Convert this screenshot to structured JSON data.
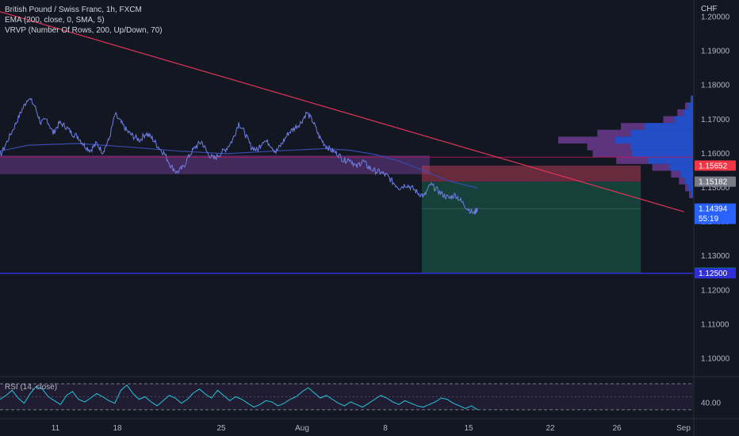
{
  "legend": {
    "title": "British Pound / Swiss Franc, 1h, FXCM",
    "ema": "EMA (200, close, 0, SMA, 5)",
    "vrvp": "VRVP (Number Of Rows, 200, Up/Down, 70)"
  },
  "unit": "CHF",
  "rsi_label": "RSI (14, close)",
  "countdown": "55:19",
  "colors": {
    "background": "#131722",
    "price_line": "#6f7fe6",
    "ema": "#3949ab",
    "trendline": "#e0345a",
    "level_line": "#2f2fd8",
    "stop_zone": "#b23a53",
    "target_zone": "#18574a",
    "resistance_band": "#6a3c8d",
    "rsi_line": "#26c6da",
    "volume_up": "#2962ff",
    "volume_down": "#9c4dcc"
  },
  "chart_data": [
    {
      "type": "line",
      "title": "British Pound / Swiss Franc, 1h, FXCM",
      "x_ticks": [
        "11",
        "18",
        "25",
        "Aug",
        "8",
        "15",
        "22",
        "26",
        "Sep"
      ],
      "y_ticks": [
        "1.10000",
        "1.11000",
        "1.12000",
        "1.13000",
        "1.14000",
        "1.15000",
        "1.16000",
        "1.17000",
        "1.18000",
        "1.19000",
        "1.20000"
      ],
      "ylim": [
        1.095,
        1.205
      ],
      "x_range_days": [
        0,
        57
      ],
      "series": [
        {
          "values_xy": [
            [
              0,
              1.1575
            ],
            [
              0.6,
              1.1555
            ],
            [
              1.2,
              1.1585
            ],
            [
              1.8,
              1.16
            ],
            [
              2.4,
              1.1645
            ],
            [
              3.0,
              1.169
            ],
            [
              3.5,
              1.173
            ],
            [
              4.0,
              1.1765
            ],
            [
              4.5,
              1.174
            ],
            [
              5.0,
              1.169
            ],
            [
              5.5,
              1.17
            ],
            [
              6.0,
              1.166
            ],
            [
              6.5,
              1.169
            ],
            [
              7.0,
              1.168
            ],
            [
              7.5,
              1.166
            ],
            [
              8.0,
              1.165
            ],
            [
              8.5,
              1.1625
            ],
            [
              9.0,
              1.161
            ],
            [
              9.5,
              1.163
            ],
            [
              10.0,
              1.1605
            ],
            [
              10.5,
              1.164
            ],
            [
              11.0,
              1.1715
            ],
            [
              11.5,
              1.169
            ],
            [
              12.0,
              1.1665
            ],
            [
              12.5,
              1.165
            ],
            [
              13.0,
              1.164
            ],
            [
              13.5,
              1.166
            ],
            [
              14.0,
              1.1645
            ],
            [
              14.5,
              1.162
            ],
            [
              15.0,
              1.16
            ],
            [
              15.5,
              1.1565
            ],
            [
              16.0,
              1.1545
            ],
            [
              16.5,
              1.156
            ],
            [
              17.0,
              1.1595
            ],
            [
              17.5,
              1.162
            ],
            [
              18.0,
              1.1635
            ],
            [
              18.5,
              1.16
            ],
            [
              19.0,
              1.1585
            ],
            [
              19.5,
              1.16
            ],
            [
              20.0,
              1.1615
            ],
            [
              20.5,
              1.164
            ],
            [
              21.0,
              1.169
            ],
            [
              21.5,
              1.166
            ],
            [
              22.0,
              1.162
            ],
            [
              22.5,
              1.161
            ],
            [
              23.0,
              1.164
            ],
            [
              23.5,
              1.163
            ],
            [
              24.0,
              1.1605
            ],
            [
              24.5,
              1.163
            ],
            [
              25.0,
              1.166
            ],
            [
              25.5,
              1.1675
            ],
            [
              26.0,
              1.169
            ],
            [
              26.5,
              1.172
            ],
            [
              27.0,
              1.1695
            ],
            [
              27.5,
              1.165
            ],
            [
              28.0,
              1.1625
            ],
            [
              28.5,
              1.161
            ],
            [
              29.0,
              1.16
            ],
            [
              29.5,
              1.158
            ],
            [
              30.0,
              1.1585
            ],
            [
              30.5,
              1.156
            ],
            [
              31.0,
              1.158
            ],
            [
              31.5,
              1.156
            ],
            [
              32.0,
              1.155
            ],
            [
              32.5,
              1.1545
            ],
            [
              33.0,
              1.1535
            ],
            [
              33.5,
              1.1515
            ],
            [
              34.0,
              1.15
            ],
            [
              34.5,
              1.151
            ],
            [
              35.0,
              1.15
            ],
            [
              35.5,
              1.1485
            ],
            [
              36.0,
              1.1475
            ],
            [
              36.5,
              1.151
            ],
            [
              37.0,
              1.1495
            ],
            [
              37.5,
              1.148
            ],
            [
              38.0,
              1.147
            ],
            [
              38.5,
              1.148
            ],
            [
              39.0,
              1.146
            ],
            [
              39.5,
              1.144
            ],
            [
              40.0,
              1.1425
            ],
            [
              40.3,
              1.1439
            ]
          ]
        },
        {
          "name": "EMA (200, close, 0, SMA, 5)",
          "values_xy": [
            [
              0,
              1.1595
            ],
            [
              4,
              1.1625
            ],
            [
              8,
              1.163
            ],
            [
              12,
              1.162
            ],
            [
              16,
              1.1608
            ],
            [
              20,
              1.16
            ],
            [
              24,
              1.1608
            ],
            [
              28,
              1.1615
            ],
            [
              30,
              1.161
            ],
            [
              32,
              1.1598
            ],
            [
              34,
              1.1578
            ],
            [
              36,
              1.155
            ],
            [
              38,
              1.152
            ],
            [
              40.3,
              1.15
            ]
          ]
        }
      ],
      "trendline": {
        "from": [
          -2,
          1.2055
        ],
        "to": [
          57,
          1.143
        ]
      },
      "horizontal_level": 1.125,
      "resistance_band": [
        1.154,
        1.1595
      ],
      "position": {
        "x_start_days": 35.8,
        "x_end_days": 53.5,
        "entry": 1.15182,
        "stop": 1.15652,
        "target": 1.12514
      },
      "price_labels": [
        "1.15652",
        "1.15182",
        "1.14394",
        "1.12514",
        "1.12500"
      ],
      "volume_profile": {
        "prices": [
          1.176,
          1.174,
          1.172,
          1.17,
          1.168,
          1.166,
          1.164,
          1.162,
          1.16,
          1.158,
          1.156,
          1.154,
          1.152,
          1.15,
          1.148
        ],
        "up": [
          2,
          6,
          12,
          24,
          62,
          80,
          100,
          80,
          78,
          58,
          30,
          16,
          10,
          6,
          3
        ],
        "down": [
          1,
          4,
          8,
          14,
          30,
          42,
          72,
          55,
          50,
          40,
          22,
          12,
          8,
          4,
          2
        ]
      }
    },
    {
      "type": "line",
      "title": "RSI (14, close)",
      "y_ticks": [
        "40.00"
      ],
      "ylim": [
        20,
        80
      ],
      "bands": [
        30,
        70
      ],
      "values": [
        46,
        52,
        60,
        48,
        40,
        55,
        66,
        62,
        50,
        44,
        38,
        52,
        58,
        46,
        42,
        48,
        55,
        50,
        44,
        40,
        60,
        68,
        55,
        46,
        50,
        42,
        36,
        44,
        52,
        48,
        40,
        46,
        56,
        62,
        54,
        48,
        60,
        52,
        44,
        50,
        46,
        40,
        34,
        38,
        44,
        42,
        36,
        40,
        46,
        50,
        58,
        64,
        56,
        48,
        52,
        46,
        40,
        36,
        42,
        38,
        34,
        40,
        46,
        52,
        48,
        42,
        38,
        44,
        40,
        36,
        34,
        38,
        42,
        48,
        46,
        40,
        36,
        32,
        36,
        30
      ]
    }
  ]
}
